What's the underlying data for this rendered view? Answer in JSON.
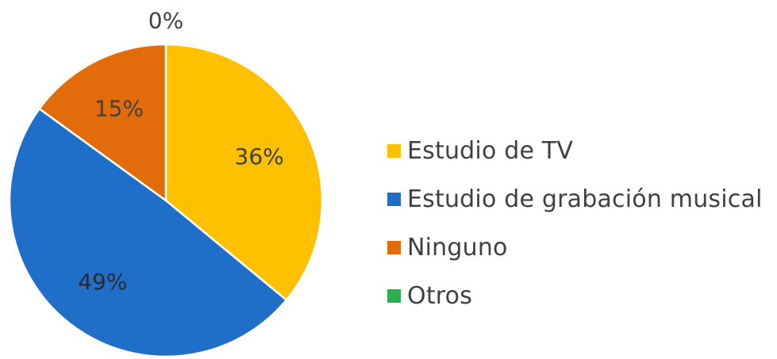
{
  "chart_data": {
    "type": "pie",
    "title": "",
    "categories": [
      "Estudio de TV",
      "Estudio de grabación musical",
      "Ninguno",
      "Otros"
    ],
    "values": [
      36,
      49,
      15,
      0
    ],
    "labels": [
      "36%",
      "49%",
      "15%",
      "0%"
    ],
    "colors": [
      "#FFC000",
      "#1F6FC9",
      "#E36C0A",
      "#2BAE4B"
    ],
    "legend_position": "right",
    "start_angle_deg": 0,
    "direction": "clockwise"
  }
}
